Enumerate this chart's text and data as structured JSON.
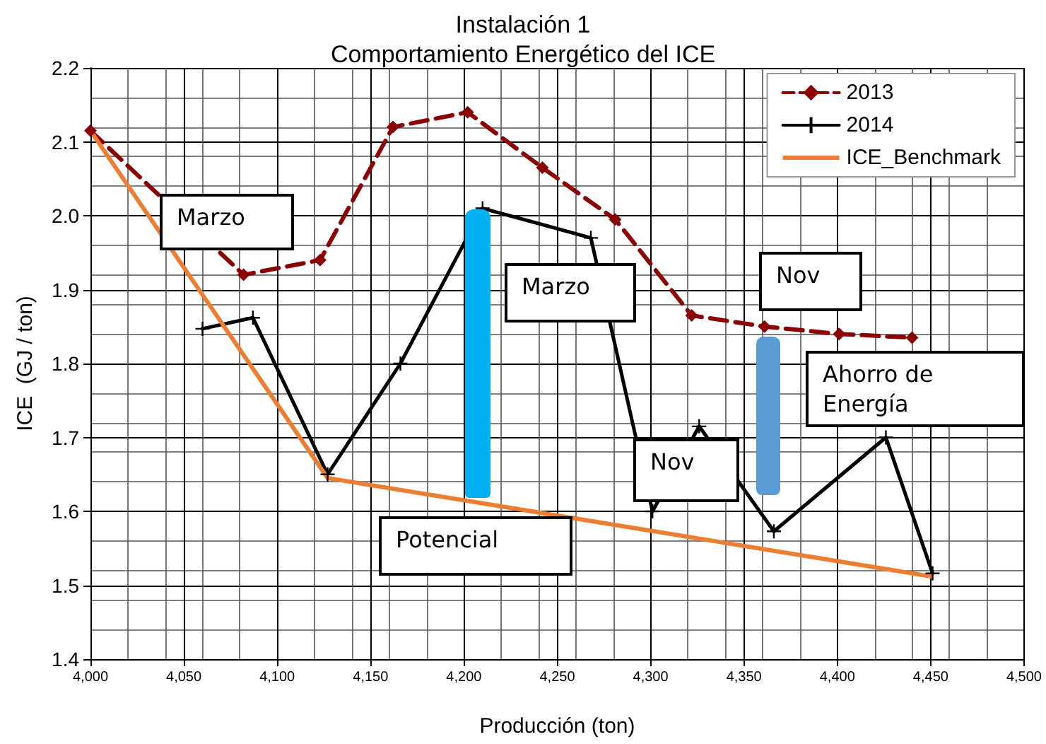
{
  "chart_data": {
    "type": "line",
    "title": "Instalación 1",
    "subtitle": "Comportamiento Energético del ICE",
    "xlabel": "Producción (ton)",
    "ylabel": "ICE  (GJ / ton)",
    "xlim": [
      4000,
      4500
    ],
    "xticks": [
      {
        "value": 4000,
        "label": "4,000"
      },
      {
        "value": 4050,
        "label": "4,050"
      },
      {
        "value": 4100,
        "label": "4,100"
      },
      {
        "value": 4150,
        "label": "4,150"
      },
      {
        "value": 4200,
        "label": "4,200"
      },
      {
        "value": 4250,
        "label": "4,250"
      },
      {
        "value": 4300,
        "label": "4,300"
      },
      {
        "value": 4350,
        "label": "4,350"
      },
      {
        "value": 4400,
        "label": "4,400"
      },
      {
        "value": 4450,
        "label": "4,450"
      },
      {
        "value": 4500,
        "label": "4,500"
      }
    ],
    "ylim": [
      1.4,
      2.2
    ],
    "yticks": [
      1.4,
      1.5,
      1.6,
      1.7,
      1.8,
      1.9,
      {
        "value": 2,
        "label": "2.0"
      },
      2.1,
      2.2
    ],
    "grid": true,
    "legend": "top right",
    "series": [
      {
        "name": "2013",
        "color": "#8b0000",
        "marker": "diamond",
        "line_style": "dashed",
        "x": [
          4000,
          4082,
          4123,
          4162,
          4202,
          4242,
          4281,
          4322,
          4361,
          4401,
          4440
        ],
        "values": [
          2.115,
          1.92,
          1.94,
          2.12,
          2.14,
          2.065,
          1.995,
          1.865,
          1.85,
          1.84,
          1.835
        ]
      },
      {
        "name": "2014",
        "color": "#000000",
        "marker": "cross",
        "line_style": "solid",
        "x": [
          4060,
          4087,
          4127,
          4166,
          4210,
          4268,
          4301,
          4326,
          4366,
          4426,
          4451
        ],
        "values": [
          1.847,
          1.862,
          1.65,
          1.8,
          2.01,
          1.97,
          1.6,
          1.715,
          1.573,
          1.7,
          1.516
        ]
      },
      {
        "name": "ICE_Benchmark",
        "color": "#ed7d31",
        "marker": "none",
        "line_style": "solid",
        "x": [
          4000,
          4127,
          4450
        ],
        "values": [
          2.115,
          1.645,
          1.512
        ]
      }
    ],
    "annotations": [
      "Marzo",
      "Marzo",
      "Nov",
      "Nov",
      "Potencial",
      "Ahorro de Energía"
    ]
  }
}
